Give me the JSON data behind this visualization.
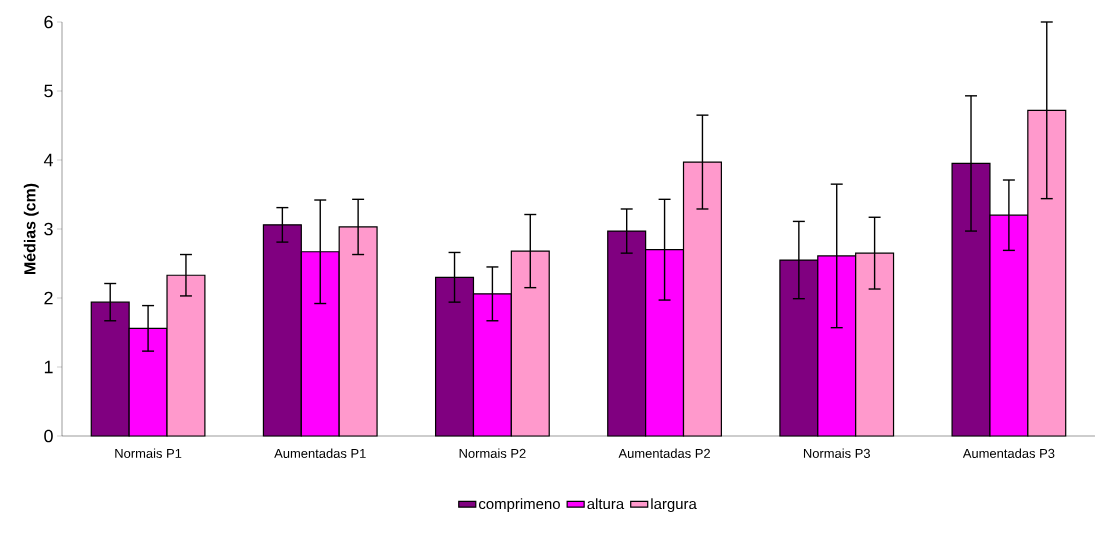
{
  "chart_data": {
    "type": "bar",
    "ylabel": "Médias (cm)",
    "categories": [
      "Normais P1",
      "Aumentadas P1",
      "Normais P2",
      "Aumentadas P2",
      "Normais P3",
      "Aumentadas P3"
    ],
    "series": [
      {
        "name": "comprimeno",
        "color": "#800080",
        "values": [
          1.94,
          3.06,
          2.3,
          2.97,
          2.55,
          3.95
        ],
        "errors": [
          0.27,
          0.25,
          0.36,
          0.32,
          0.56,
          0.98
        ]
      },
      {
        "name": "altura",
        "color": "#ff00ff",
        "values": [
          1.56,
          2.67,
          2.06,
          2.7,
          2.61,
          3.2
        ],
        "errors": [
          0.33,
          0.75,
          0.39,
          0.73,
          1.04,
          0.51
        ]
      },
      {
        "name": "largura",
        "color": "#ff99cc",
        "values": [
          2.33,
          3.03,
          2.68,
          3.97,
          2.65,
          4.72
        ],
        "errors": [
          0.3,
          0.4,
          0.53,
          0.68,
          0.52,
          1.28
        ]
      }
    ],
    "ylim": [
      0,
      6
    ],
    "yticks": [
      0,
      1,
      2,
      3,
      4,
      5,
      6
    ],
    "grid": false,
    "legend": "bottom"
  }
}
